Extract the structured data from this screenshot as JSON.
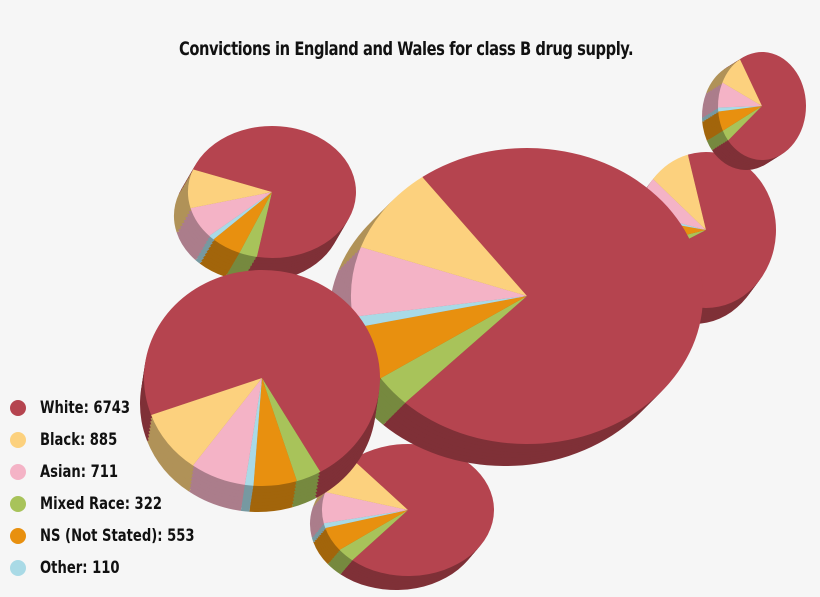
{
  "chart_data": {
    "type": "pie",
    "title": "Convictions in England and Wales for class B drug supply.",
    "legend_position": "bottom-left",
    "categories": [
      "White",
      "Black",
      "Asian",
      "Mixed Race",
      "NS (Not Stated)",
      "Other"
    ],
    "values": [
      6743,
      885,
      711,
      322,
      553,
      110
    ],
    "colors": [
      "#b5444f",
      "#fcd17e",
      "#f4b3c6",
      "#a8c35a",
      "#e8900f",
      "#a9dae6"
    ],
    "legend": [
      {
        "label": "White: 6743",
        "color": "#b5444f"
      },
      {
        "label": "Black: 885",
        "color": "#fcd17e"
      },
      {
        "label": "Asian: 711",
        "color": "#f4b3c6"
      },
      {
        "label": "Mixed Race: 322",
        "color": "#a8c35a"
      },
      {
        "label": "NS (Not Stated): 553",
        "color": "#e8900f"
      },
      {
        "label": "Other: 110",
        "color": "#a9dae6"
      }
    ]
  }
}
